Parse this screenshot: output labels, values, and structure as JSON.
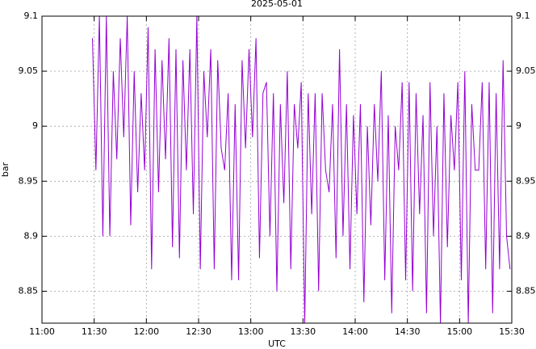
{
  "chart_data": {
    "type": "line",
    "title": "2025-05-01",
    "x_label": "UTC",
    "y_label": "bar",
    "x": [
      "11:29",
      "11:31",
      "11:33",
      "11:35",
      "11:37",
      "11:39",
      "11:41",
      "11:43",
      "11:45",
      "11:47",
      "11:49",
      "11:51",
      "11:53",
      "11:55",
      "11:57",
      "11:59",
      "12:01",
      "12:03",
      "12:05",
      "12:07",
      "12:09",
      "12:11",
      "12:13",
      "12:15",
      "12:17",
      "12:19",
      "12:21",
      "12:23",
      "12:25",
      "12:27",
      "12:29",
      "12:31",
      "12:33",
      "12:35",
      "12:37",
      "12:39",
      "12:41",
      "12:43",
      "12:45",
      "12:47",
      "12:49",
      "12:51",
      "12:53",
      "12:55",
      "12:57",
      "12:59",
      "13:01",
      "13:03",
      "13:05",
      "13:07",
      "13:09",
      "13:11",
      "13:13",
      "13:15",
      "13:17",
      "13:19",
      "13:21",
      "13:23",
      "13:25",
      "13:27",
      "13:29",
      "13:31",
      "13:33",
      "13:35",
      "13:37",
      "13:39",
      "13:41",
      "13:43",
      "13:45",
      "13:47",
      "13:49",
      "13:51",
      "13:53",
      "13:55",
      "13:57",
      "13:59",
      "14:01",
      "14:03",
      "14:05",
      "14:07",
      "14:09",
      "14:11",
      "14:13",
      "14:15",
      "14:17",
      "14:19",
      "14:21",
      "14:23",
      "14:25",
      "14:27",
      "14:29",
      "14:31",
      "14:33",
      "14:35",
      "14:37",
      "14:39",
      "14:41",
      "14:43",
      "14:45",
      "14:47",
      "14:49",
      "14:51",
      "14:53",
      "14:55",
      "14:57",
      "14:59",
      "15:01",
      "15:03",
      "15:05",
      "15:07",
      "15:09",
      "15:11",
      "15:13",
      "15:15",
      "15:17",
      "15:19",
      "15:21",
      "15:23",
      "15:25",
      "15:27",
      "15:29"
    ],
    "series": [
      {
        "name": "bar",
        "color": "#9400d3",
        "values": [
          9.08,
          8.96,
          9.1,
          8.9,
          9.1,
          8.9,
          9.05,
          8.97,
          9.08,
          8.99,
          9.1,
          8.91,
          9.05,
          8.94,
          9.03,
          8.96,
          9.09,
          8.87,
          9.07,
          8.94,
          9.06,
          8.97,
          9.08,
          8.89,
          9.07,
          8.88,
          9.06,
          8.96,
          9.07,
          8.92,
          9.1,
          8.87,
          9.05,
          8.99,
          9.07,
          8.87,
          9.06,
          8.98,
          8.96,
          9.03,
          8.86,
          9.02,
          8.86,
          9.06,
          8.98,
          9.07,
          8.99,
          9.08,
          8.88,
          9.03,
          9.04,
          8.9,
          9.03,
          8.85,
          9.02,
          8.93,
          9.05,
          8.87,
          9.02,
          8.98,
          9.04,
          8.82,
          9.03,
          8.92,
          9.03,
          8.85,
          9.03,
          8.96,
          8.94,
          9.02,
          8.88,
          9.07,
          8.9,
          9.02,
          8.87,
          9.01,
          8.92,
          9.02,
          8.84,
          9.0,
          8.91,
          9.02,
          8.95,
          9.05,
          8.86,
          9.01,
          8.83,
          9.0,
          8.96,
          9.04,
          8.86,
          9.04,
          8.85,
          9.03,
          8.92,
          9.01,
          8.83,
          9.04,
          8.9,
          9.0,
          8.82,
          9.03,
          8.89,
          9.01,
          8.96,
          9.04,
          8.86,
          9.05,
          8.82,
          9.02,
          8.96,
          8.96,
          9.04,
          8.87,
          9.04,
          8.83,
          9.03,
          8.87,
          9.06,
          8.9,
          8.87
        ]
      }
    ],
    "xlim": [
      "11:00",
      "15:30"
    ],
    "xticks": [
      "11:00",
      "11:30",
      "12:00",
      "12:30",
      "13:00",
      "13:30",
      "14:00",
      "14:30",
      "15:00",
      "15:30"
    ],
    "ylim": [
      8.821,
      9.1
    ],
    "yticks": [
      8.85,
      8.9,
      8.95,
      9,
      9.05,
      9.1
    ],
    "grid": true
  }
}
